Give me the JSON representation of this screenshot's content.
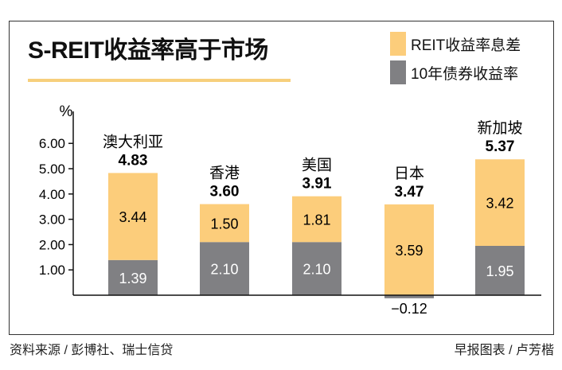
{
  "chart_data": {
    "type": "bar",
    "stacked": true,
    "title": "S-REIT收益率高于市场",
    "ylabel": "%",
    "ylim": [
      -0.5,
      6.5
    ],
    "yticks": [
      "1.00",
      "2.00",
      "3.00",
      "4.00",
      "5.00",
      "6.00"
    ],
    "categories": [
      "澳大利亚",
      "香港",
      "美国",
      "日本",
      "新加坡"
    ],
    "totals": [
      "4.83",
      "3.60",
      "3.91",
      "3.47",
      "5.37"
    ],
    "series": [
      {
        "name": "10年债券收益率",
        "color": "#808083",
        "values": [
          1.39,
          2.1,
          2.1,
          -0.12,
          1.95
        ],
        "labels": [
          "1.39",
          "2.10",
          "2.10",
          "−0.12",
          "1.95"
        ]
      },
      {
        "name": "REIT收益率息差",
        "color": "#fccd7b",
        "values": [
          3.44,
          1.5,
          1.81,
          3.59,
          3.42
        ],
        "labels": [
          "3.44",
          "1.50",
          "1.81",
          "3.59",
          "3.42"
        ]
      }
    ],
    "legend_position": "top-right"
  },
  "footer": {
    "source": "资料来源 / 彭博社、瑞士信贷",
    "credit": "早报图表 / 卢芳楷"
  }
}
